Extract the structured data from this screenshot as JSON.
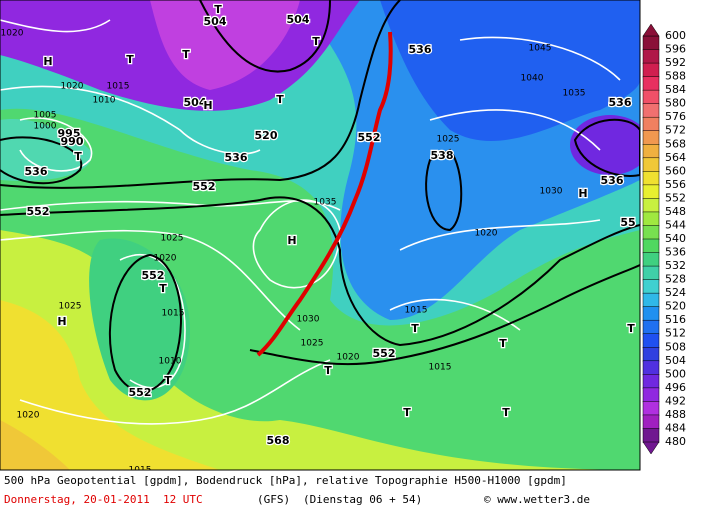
{
  "map_labels": [
    "504",
    "504",
    "T",
    "T",
    "T",
    "T",
    "H",
    "536",
    "T",
    "552",
    "552",
    "520",
    "536",
    "504",
    "H",
    "T",
    "536",
    "552",
    "538",
    "1035",
    "H",
    "1025",
    "1020",
    "552",
    "T",
    "1015",
    "1010",
    "T",
    "552",
    "H",
    "1025",
    "1020",
    "1030",
    "1025",
    "1020",
    "552",
    "T",
    "T",
    "1015",
    "1015",
    "T",
    "T",
    "T",
    "T",
    "1020",
    "1030",
    "H",
    "536",
    "536",
    "1045",
    "1040",
    "1035",
    "1025",
    "568",
    "1015",
    "1005",
    "1000",
    "995",
    "990",
    "1020",
    "1015",
    "1010",
    "1020",
    "55"
  ],
  "colorbar": {
    "labels": [
      600,
      596,
      592,
      588,
      584,
      580,
      576,
      572,
      568,
      564,
      560,
      556,
      552,
      548,
      544,
      540,
      536,
      532,
      528,
      524,
      520,
      516,
      512,
      508,
      504,
      500,
      496,
      492,
      488,
      484,
      480
    ],
    "colors": [
      "#8a1038",
      "#b01848",
      "#d02050",
      "#e83060",
      "#f05068",
      "#f07070",
      "#f08060",
      "#f09850",
      "#f0b040",
      "#f0c838",
      "#f0e030",
      "#e8f030",
      "#c8f040",
      "#a0e840",
      "#78e050",
      "#50d860",
      "#40d080",
      "#40d0a8",
      "#40d0d0",
      "#30b8e8",
      "#2090f0",
      "#2070f0",
      "#2050f0",
      "#3040e0",
      "#5030e0",
      "#7028e0",
      "#9028e0",
      "#b030e0",
      "#a020c0",
      "#701890"
    ]
  },
  "footer": {
    "line1": "500 hPa Geopotential [gpdm], Bodendruck [hPa], relative Topographie H500-H1000 [gpdm]",
    "date": "Donnerstag, 20-01-2011  12 UTC",
    "model": "(GFS)",
    "run": "(Dienstag 06 + 54)",
    "credit": "© www.wetter3.de"
  }
}
